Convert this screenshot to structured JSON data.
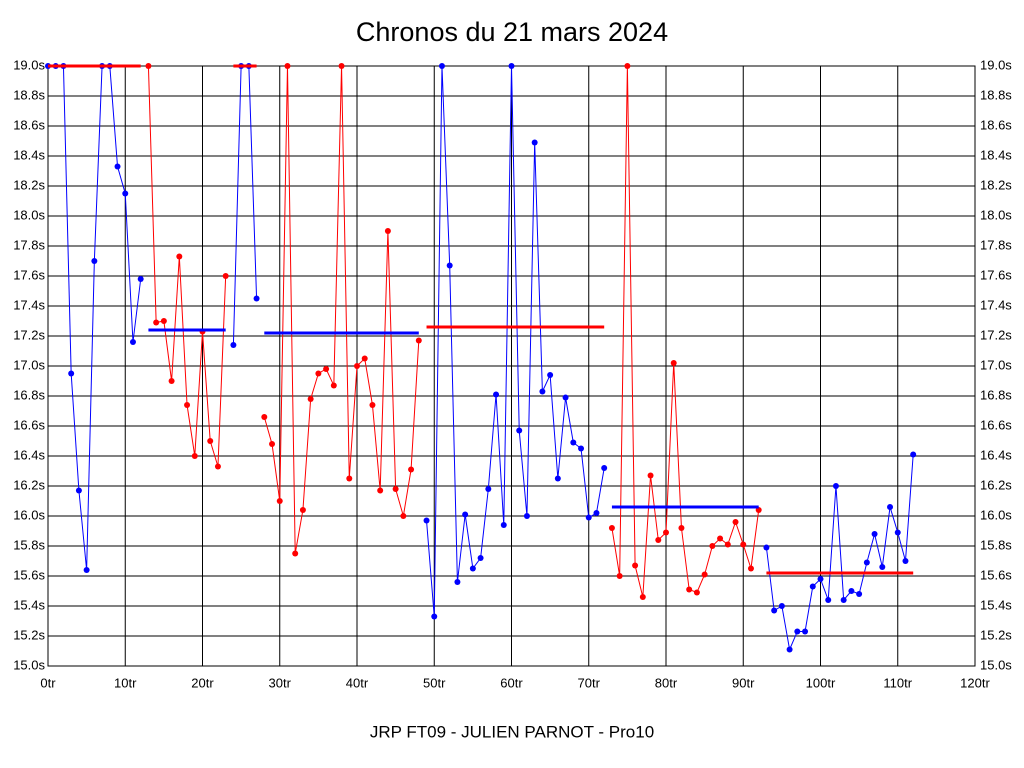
{
  "chart_data": {
    "type": "line",
    "title": "Chronos du 21 mars 2024",
    "xlabel": "JRP FT09 - JULIEN PARNOT - Pro10",
    "xlim": [
      0,
      120
    ],
    "ylim": [
      15.0,
      19.0
    ],
    "grid": true,
    "xticks": [
      {
        "value": 0,
        "label": "0tr"
      },
      {
        "value": 10,
        "label": "10tr"
      },
      {
        "value": 20,
        "label": "20tr"
      },
      {
        "value": 30,
        "label": "30tr"
      },
      {
        "value": 40,
        "label": "40tr"
      },
      {
        "value": 50,
        "label": "50tr"
      },
      {
        "value": 60,
        "label": "60tr"
      },
      {
        "value": 70,
        "label": "70tr"
      },
      {
        "value": 80,
        "label": "80tr"
      },
      {
        "value": 90,
        "label": "90tr"
      },
      {
        "value": 100,
        "label": "100tr"
      },
      {
        "value": 110,
        "label": "110tr"
      },
      {
        "value": 120,
        "label": "120tr"
      }
    ],
    "yticks": [
      {
        "value": 15.0,
        "label": "15.0s"
      },
      {
        "value": 15.2,
        "label": "15.2s"
      },
      {
        "value": 15.4,
        "label": "15.4s"
      },
      {
        "value": 15.6,
        "label": "15.6s"
      },
      {
        "value": 15.8,
        "label": "15.8s"
      },
      {
        "value": 16.0,
        "label": "16.0s"
      },
      {
        "value": 16.2,
        "label": "16.2s"
      },
      {
        "value": 16.4,
        "label": "16.4s"
      },
      {
        "value": 16.6,
        "label": "16.6s"
      },
      {
        "value": 16.8,
        "label": "16.8s"
      },
      {
        "value": 17.0,
        "label": "17.0s"
      },
      {
        "value": 17.2,
        "label": "17.2s"
      },
      {
        "value": 17.4,
        "label": "17.4s"
      },
      {
        "value": 17.6,
        "label": "17.6s"
      },
      {
        "value": 17.8,
        "label": "17.8s"
      },
      {
        "value": 18.0,
        "label": "18.0s"
      },
      {
        "value": 18.2,
        "label": "18.2s"
      },
      {
        "value": 18.4,
        "label": "18.4s"
      },
      {
        "value": 18.6,
        "label": "18.6s"
      },
      {
        "value": 18.8,
        "label": "18.8s"
      },
      {
        "value": 19.0,
        "label": "19.0s"
      }
    ],
    "x": [
      0,
      1,
      2,
      3,
      4,
      5,
      6,
      7,
      8,
      9,
      10,
      11,
      12,
      13,
      14,
      15,
      16,
      17,
      18,
      19,
      20,
      21,
      22,
      23,
      24,
      25,
      26,
      27,
      28,
      29,
      30,
      31,
      32,
      33,
      34,
      35,
      36,
      37,
      38,
      39,
      40,
      41,
      42,
      43,
      44,
      45,
      46,
      47,
      48,
      49,
      50,
      51,
      52,
      53,
      54,
      55,
      56,
      57,
      58,
      59,
      60,
      61,
      62,
      63,
      64,
      65,
      66,
      67,
      68,
      69,
      70,
      71,
      72,
      73,
      74,
      75,
      76,
      77,
      78,
      79,
      80,
      81,
      82,
      83,
      84,
      85,
      86,
      87,
      88,
      89,
      90,
      91,
      92,
      93,
      94,
      95,
      96,
      97,
      98,
      99,
      100,
      101,
      102,
      103,
      104,
      105,
      106,
      107,
      108,
      109,
      110,
      111,
      112
    ],
    "series": [
      {
        "color": "#0000ff",
        "values": [
          19.0,
          19.0,
          19.0,
          16.95,
          16.17,
          15.64,
          17.7,
          19.0,
          19.0,
          18.33,
          18.15,
          17.16,
          17.58,
          null,
          null,
          null,
          null,
          null,
          null,
          null,
          null,
          null,
          null,
          null,
          17.14,
          19.0,
          19.0,
          17.45,
          null,
          null,
          null,
          null,
          null,
          null,
          null,
          null,
          null,
          null,
          null,
          null,
          null,
          null,
          null,
          null,
          null,
          null,
          null,
          null,
          null,
          15.97,
          15.33,
          19.0,
          17.67,
          15.56,
          16.01,
          15.65,
          15.72,
          16.18,
          16.81,
          15.94,
          19.0,
          16.57,
          16.0,
          18.49,
          16.83,
          16.94,
          16.25,
          16.79,
          16.49,
          16.45,
          15.99,
          16.02,
          16.32,
          null,
          null,
          null,
          null,
          null,
          null,
          null,
          null,
          null,
          null,
          null,
          null,
          null,
          null,
          null,
          null,
          null,
          null,
          null,
          null,
          15.79,
          15.37,
          15.4,
          15.11,
          15.23,
          15.23,
          15.53,
          15.58,
          15.44,
          16.2,
          15.44,
          15.5,
          15.48,
          15.69,
          15.88,
          15.66,
          16.06,
          15.89,
          15.7,
          16.41
        ]
      },
      {
        "color": "#ff0000",
        "values": [
          null,
          null,
          null,
          null,
          null,
          null,
          null,
          null,
          null,
          null,
          null,
          null,
          null,
          19.0,
          17.29,
          17.3,
          16.9,
          17.73,
          16.74,
          16.4,
          17.23,
          16.5,
          16.33,
          17.6,
          null,
          null,
          null,
          null,
          16.66,
          16.48,
          16.1,
          19.0,
          15.75,
          16.04,
          16.78,
          16.95,
          16.98,
          16.87,
          19.0,
          16.25,
          17.0,
          17.05,
          16.74,
          16.17,
          17.9,
          16.18,
          16.0,
          16.31,
          17.17,
          null,
          null,
          null,
          null,
          null,
          null,
          null,
          null,
          null,
          null,
          null,
          null,
          null,
          null,
          null,
          null,
          null,
          null,
          null,
          null,
          null,
          null,
          null,
          null,
          15.92,
          15.6,
          19.0,
          15.67,
          15.46,
          16.27,
          15.84,
          15.89,
          17.02,
          15.92,
          15.51,
          15.49,
          15.61,
          15.8,
          15.85,
          15.81,
          15.96,
          15.81,
          15.65,
          16.04,
          null,
          null,
          null,
          null,
          null,
          null,
          null,
          null,
          null,
          null,
          null,
          null,
          null,
          null,
          null,
          null,
          null,
          null,
          null,
          null
        ]
      }
    ],
    "averages": [
      {
        "color": "#ff0000",
        "x": [
          0,
          12
        ],
        "value": 19.0
      },
      {
        "color": "#0000ff",
        "x": [
          13,
          23
        ],
        "value": 17.24
      },
      {
        "color": "#ff0000",
        "x": [
          24,
          27
        ],
        "value": 19.0
      },
      {
        "color": "#0000ff",
        "x": [
          28,
          48
        ],
        "value": 17.22
      },
      {
        "color": "#ff0000",
        "x": [
          49,
          72
        ],
        "value": 17.26
      },
      {
        "color": "#0000ff",
        "x": [
          73,
          92
        ],
        "value": 16.06
      },
      {
        "color": "#ff0000",
        "x": [
          93,
          112
        ],
        "value": 15.62
      }
    ]
  }
}
